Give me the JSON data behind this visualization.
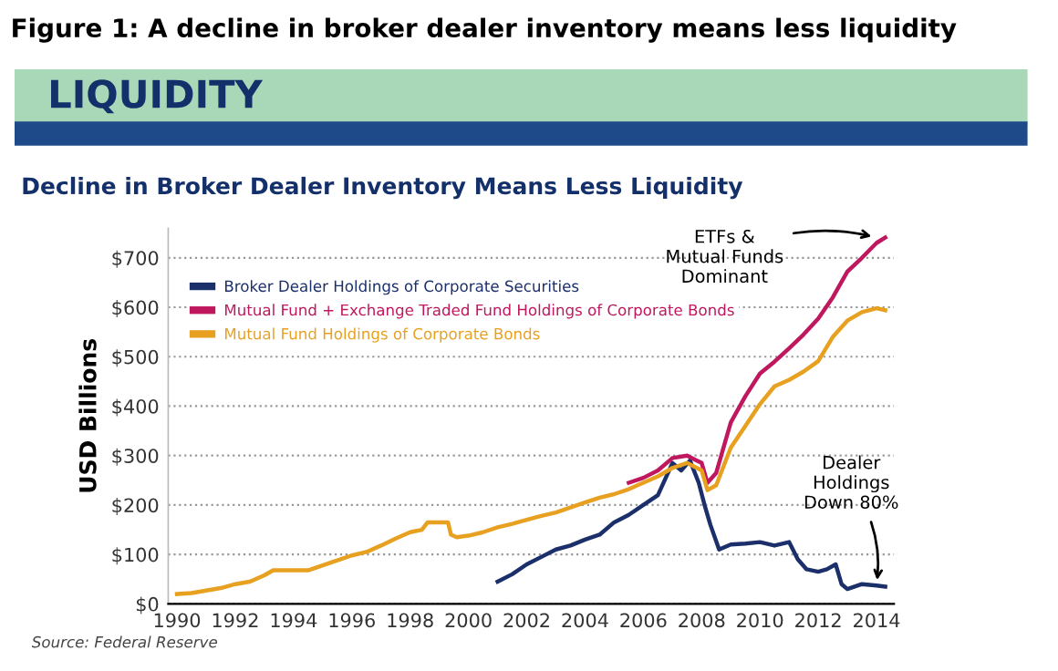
{
  "chart_data": {
    "type": "line",
    "title": "Figure 1: A decline in broker dealer inventory means less liquidity",
    "subtitle": "Decline in Broker Dealer Inventory Means Less Liquidity",
    "ylabel": "USD Billions",
    "annotations": [
      "LIQUIDITY",
      {
        "text": "ETFs &\nMutual Funds\nDominant",
        "x": 2014,
        "y": 741
      },
      {
        "text": "Dealer\nHoldings\nDown 80%",
        "x": 2014,
        "y": 38
      },
      "Source: Federal Reserve"
    ],
    "xlim": [
      1989.7,
      2014.6
    ],
    "xticks": [
      1990,
      1992,
      1994,
      1996,
      1998,
      2000,
      2002,
      2004,
      2006,
      2008,
      2010,
      2012,
      2014
    ],
    "ylim": [
      0,
      760
    ],
    "yticks": [
      {
        "value": 0,
        "label": "$0"
      },
      {
        "value": 100,
        "label": "$100"
      },
      {
        "value": 200,
        "label": "$200"
      },
      {
        "value": 300,
        "label": "$300"
      },
      {
        "value": 400,
        "label": "$400"
      },
      {
        "value": 500,
        "label": "$500"
      },
      {
        "value": 600,
        "label": "$600"
      },
      {
        "value": 700,
        "label": "$700"
      }
    ],
    "grid": "y",
    "legend": "top left",
    "line_style": "solid",
    "series": [
      {
        "name": "Broker Dealer Holdings of Corporate Securities",
        "color": "#1b2f6b",
        "x": [
          2001,
          2001.5,
          2002,
          2002.5,
          2003,
          2003.5,
          2004,
          2004.5,
          2005,
          2005.5,
          2006,
          2006.5,
          2007,
          2007.3,
          2007.6,
          2007.9,
          2008.1,
          2008.3,
          2008.6,
          2009,
          2009.5,
          2010,
          2010.5,
          2011,
          2011.3,
          2011.6,
          2012,
          2012.3,
          2012.6,
          2012.8,
          2013,
          2013.5,
          2014,
          2014.3
        ],
        "values": [
          45,
          60,
          80,
          95,
          110,
          118,
          130,
          140,
          165,
          180,
          200,
          220,
          285,
          270,
          290,
          245,
          200,
          160,
          110,
          120,
          122,
          125,
          118,
          125,
          90,
          70,
          65,
          70,
          80,
          40,
          30,
          40,
          37,
          35
        ]
      },
      {
        "name": "Mutual Fund + Exchange Traded Fund Holdings of Corporate Bonds",
        "color": "#c0185f",
        "x": [
          2005.5,
          2006,
          2006.5,
          2007,
          2007.5,
          2008,
          2008.2,
          2008.5,
          2009,
          2009.5,
          2010,
          2010.5,
          2011,
          2011.5,
          2012,
          2012.5,
          2013,
          2013.5,
          2014,
          2014.3
        ],
        "values": [
          245,
          255,
          270,
          295,
          300,
          285,
          245,
          265,
          367,
          420,
          466,
          490,
          517,
          545,
          577,
          620,
          672,
          700,
          730,
          741
        ]
      },
      {
        "name": "Mutual Fund Holdings of Corporate Bonds",
        "color": "#e8a020",
        "x": [
          1990,
          1990.5,
          1991,
          1991.5,
          1992,
          1992.5,
          1993,
          1993.3,
          1994,
          1994.5,
          1995,
          1995.5,
          1996,
          1996.5,
          1997,
          1997.5,
          1998,
          1998.4,
          1998.6,
          1999,
          1999.3,
          1999.4,
          1999.6,
          2000,
          2000.5,
          2001,
          2001.5,
          2002,
          2002.5,
          2003,
          2003.5,
          2004,
          2004.5,
          2005,
          2005.5,
          2006,
          2006.5,
          2007,
          2007.5,
          2008,
          2008.2,
          2008.5,
          2009,
          2009.5,
          2010,
          2010.5,
          2011,
          2011.5,
          2012,
          2012.5,
          2013,
          2013.5,
          2014,
          2014.3
        ],
        "values": [
          20,
          22,
          27,
          32,
          40,
          45,
          58,
          68,
          68,
          68,
          78,
          88,
          98,
          105,
          118,
          132,
          145,
          150,
          165,
          165,
          165,
          140,
          135,
          138,
          145,
          155,
          162,
          170,
          178,
          185,
          195,
          205,
          215,
          222,
          232,
          245,
          258,
          275,
          285,
          270,
          230,
          240,
          316,
          360,
          404,
          440,
          453,
          470,
          491,
          540,
          573,
          590,
          598,
          594
        ]
      }
    ]
  }
}
